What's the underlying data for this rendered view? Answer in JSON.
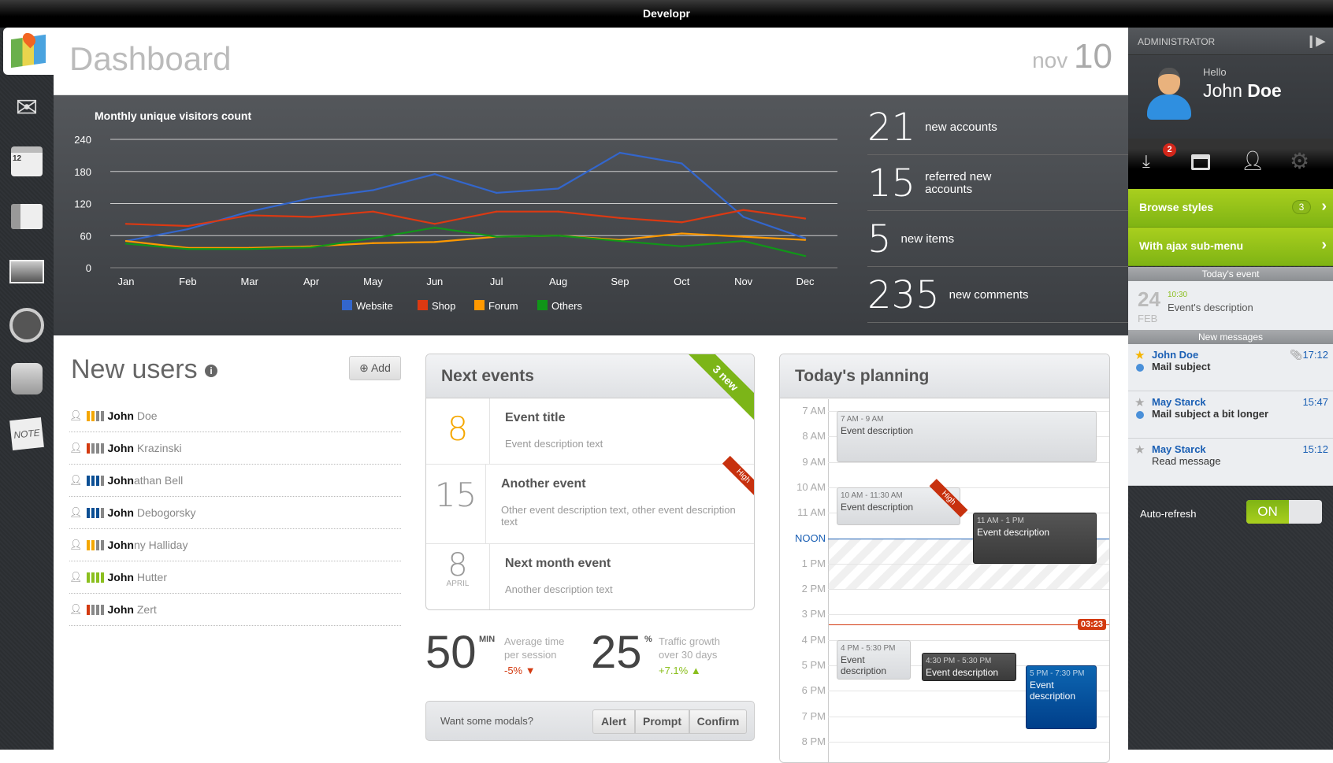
{
  "window_title": "Developr",
  "header": {
    "title": "Dashboard",
    "date_month": "nov",
    "date_day": "10"
  },
  "sidebar": {
    "items": [
      {
        "icon": "map-icon"
      },
      {
        "icon": "mail-icon"
      },
      {
        "icon": "calendar-icon"
      },
      {
        "icon": "contacts-icon"
      },
      {
        "icon": "photos-icon"
      },
      {
        "icon": "gauge-icon"
      },
      {
        "icon": "network-icon"
      },
      {
        "icon": "note-icon"
      }
    ]
  },
  "chart_data": {
    "type": "line",
    "title": "Monthly unique visitors count",
    "categories": [
      "Jan",
      "Feb",
      "Mar",
      "Apr",
      "May",
      "Jun",
      "Jul",
      "Aug",
      "Sep",
      "Oct",
      "Nov",
      "Dec"
    ],
    "ylim": [
      0,
      240
    ],
    "yticks": [
      "0",
      "60",
      "120",
      "180",
      "240"
    ],
    "grid": true,
    "legend": "bottom",
    "series": [
      {
        "name": "Website",
        "color": "#3366cc",
        "values": [
          50,
          72,
          105,
          130,
          145,
          175,
          140,
          148,
          215,
          195,
          95,
          55
        ]
      },
      {
        "name": "Shop",
        "color": "#dc3912",
        "values": [
          82,
          78,
          98,
          95,
          105,
          82,
          105,
          105,
          93,
          85,
          108,
          92
        ]
      },
      {
        "name": "Forum",
        "color": "#ff9900",
        "values": [
          50,
          37,
          37,
          40,
          46,
          48,
          58,
          60,
          52,
          64,
          58,
          52
        ]
      },
      {
        "name": "Others",
        "color": "#109618",
        "values": [
          45,
          35,
          35,
          38,
          55,
          75,
          58,
          60,
          50,
          40,
          50,
          22
        ]
      }
    ]
  },
  "stats": [
    {
      "n": "21",
      "l": "new accounts"
    },
    {
      "n": "15",
      "l": "referred new accounts"
    },
    {
      "n": "5",
      "l": "new items"
    },
    {
      "n": "235",
      "l": "new comments"
    }
  ],
  "users": {
    "title": "New users",
    "add_label": "Add",
    "list": [
      {
        "bold": "John",
        "rest": " Doe",
        "colors": [
          "#f5a700",
          "#f5a700",
          "#888",
          "#888"
        ]
      },
      {
        "bold": "John",
        "rest": " Krazinski",
        "colors": [
          "#d33a10",
          "#888",
          "#888",
          "#888"
        ]
      },
      {
        "bold": "John",
        "rest": "athan Bell",
        "colors": [
          "#0b4f94",
          "#0b4f94",
          "#0b4f94",
          "#888"
        ]
      },
      {
        "bold": "John",
        "rest": " Debogorsky",
        "colors": [
          "#0b4f94",
          "#0b4f94",
          "#0b4f94",
          "#888"
        ]
      },
      {
        "bold": "John",
        "rest": "ny Halliday",
        "colors": [
          "#f5a700",
          "#f5a700",
          "#888",
          "#888"
        ]
      },
      {
        "bold": "John",
        "rest": " Hutter",
        "colors": [
          "#8bbf1e",
          "#8bbf1e",
          "#8bbf1e",
          "#8bbf1e"
        ]
      },
      {
        "bold": "John",
        "rest": " Zert",
        "colors": [
          "#d33a10",
          "#888",
          "#888",
          "#888"
        ]
      }
    ]
  },
  "events": {
    "title": "Next events",
    "ribbon": "3 new",
    "list": [
      {
        "day": "8",
        "month": "",
        "title": "Event title",
        "desc": "Event description text",
        "color": "#f5a700"
      },
      {
        "day": "15",
        "month": "",
        "title": "Another event",
        "desc": "Other event description text, other event description text",
        "ribbon": "High"
      },
      {
        "day": "8",
        "month": "APRIL",
        "title": "Next month event",
        "desc": "Another description text"
      }
    ]
  },
  "metrics": [
    {
      "value": "50",
      "unit": "MIN",
      "label": "Average time per session",
      "change": "-5% ▼",
      "change_color": "#d33a10"
    },
    {
      "value": "25",
      "unit": "%",
      "label": "Traffic growth over 30 days",
      "change": "+7.1% ▲",
      "change_color": "#8bbf1e"
    }
  ],
  "modals": {
    "label": "Want some modals?",
    "buttons": [
      "Alert",
      "Prompt",
      "Confirm"
    ]
  },
  "planning": {
    "title": "Today's planning",
    "hours": [
      "7 AM",
      "8 AM",
      "9 AM",
      "10 AM",
      "11 AM",
      "NOON",
      "1 PM",
      "2 PM",
      "3 PM",
      "4 PM",
      "5 PM",
      "6 PM",
      "7 PM",
      "8 PM"
    ],
    "now": "03:23",
    "events": [
      {
        "time": "7 AM - 9 AM",
        "desc": "Event description",
        "style": "light"
      },
      {
        "time": "10 AM - 11:30 AM",
        "desc": "Event description",
        "style": "light",
        "ribbon": "High"
      },
      {
        "time": "11 AM - 1 PM",
        "desc": "Event description",
        "style": "dark"
      },
      {
        "time": "4 PM - 5:30 PM",
        "desc": "Event description",
        "style": "light"
      },
      {
        "time": "4:30 PM - 5:30 PM",
        "desc": "Event description",
        "style": "dark"
      },
      {
        "time": "5 PM - 7:30 PM",
        "desc": "Event description",
        "style": "blue"
      }
    ]
  },
  "right_panel": {
    "role": "ADMINISTRATOR",
    "greeting": "Hello",
    "user_first": "John",
    "user_last": "Doe",
    "downloads_badge": "2",
    "menu": [
      {
        "label": "Browse styles",
        "count": "3"
      },
      {
        "label": "With ajax sub-menu"
      }
    ],
    "todays_event_header": "Today's event",
    "todays_event": {
      "day": "24",
      "month": "FEB",
      "time": "10:30",
      "desc": "Event's description"
    },
    "messages_header": "New messages",
    "messages": [
      {
        "from": "John Doe",
        "subject": "Mail subject",
        "time": "17:12",
        "starred": true,
        "unread": true,
        "attachment": true
      },
      {
        "from": "May Starck",
        "subject": "Mail subject a bit longer",
        "time": "15:47",
        "starred": false,
        "unread": true
      },
      {
        "from": "May Starck",
        "subject": "Read message",
        "time": "15:12",
        "starred": false,
        "unread": false
      }
    ],
    "auto_refresh_label": "Auto-refresh",
    "auto_refresh_state": "ON"
  }
}
